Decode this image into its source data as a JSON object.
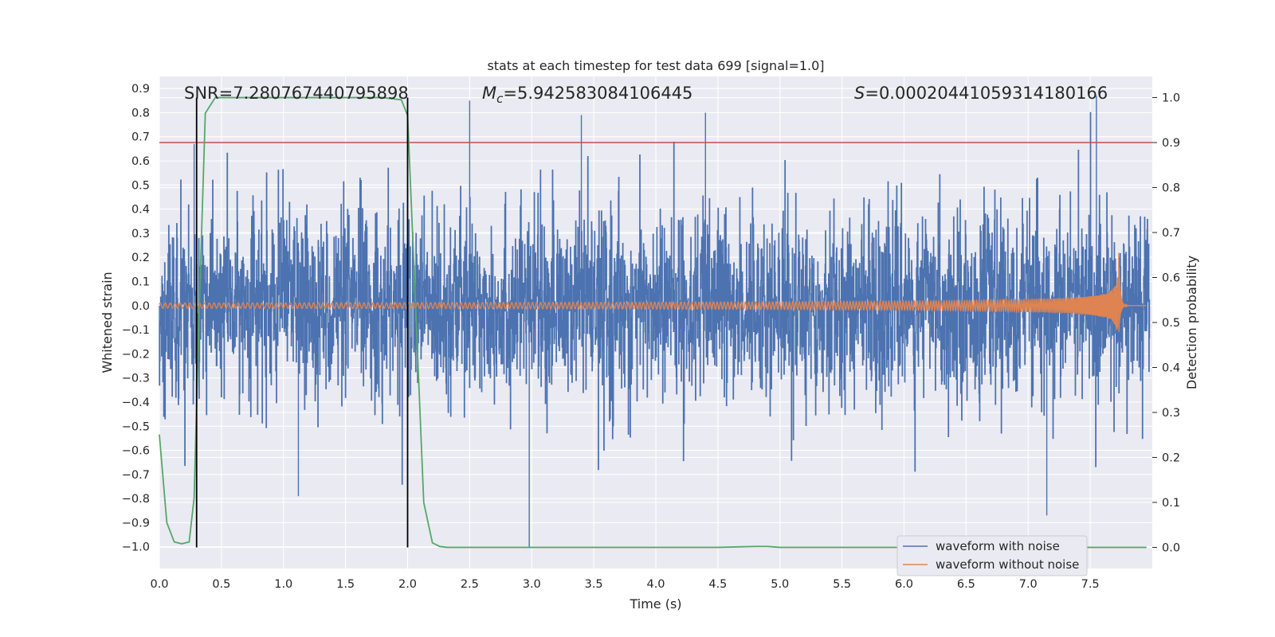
{
  "chart_data": {
    "type": "line",
    "title": "stats at each timestep for test data 699 [signal=1.0]",
    "xlabel": "Time (s)",
    "ylabel": "Whitened strain",
    "y2label": "Detection probability",
    "xlim": [
      0.0,
      8.0
    ],
    "ylim": [
      -1.09,
      0.95
    ],
    "y2lim": [
      -0.047,
      1.047
    ],
    "x_ticks": [
      0.0,
      0.5,
      1.0,
      1.5,
      2.0,
      2.5,
      3.0,
      3.5,
      4.0,
      4.5,
      5.0,
      5.5,
      6.0,
      6.5,
      7.0,
      7.5
    ],
    "x_tick_labels": [
      "0.0",
      "0.5",
      "1.0",
      "1.5",
      "2.0",
      "2.5",
      "3.0",
      "3.5",
      "4.0",
      "4.5",
      "5.0",
      "5.5",
      "6.0",
      "6.5",
      "7.0",
      "7.5"
    ],
    "y_ticks": [
      0.9,
      0.8,
      0.7,
      0.6,
      0.5,
      0.4,
      0.3,
      0.2,
      0.1,
      0.0,
      -0.1,
      -0.2,
      -0.3,
      -0.4,
      -0.5,
      -0.6,
      -0.7,
      -0.8,
      -0.9,
      -1.0
    ],
    "y_tick_labels": [
      "0.9",
      "0.8",
      "0.7",
      "0.6",
      "0.5",
      "0.4",
      "0.3",
      "0.2",
      "0.1",
      "0.0",
      "−0.1",
      "−0.2",
      "−0.3",
      "−0.4",
      "−0.5",
      "−0.6",
      "−0.7",
      "−0.8",
      "−0.9",
      "−1.0"
    ],
    "y2_ticks": [
      1.0,
      0.9,
      0.8,
      0.7,
      0.6,
      0.5,
      0.4,
      0.3,
      0.2,
      0.1,
      0.0
    ],
    "y2_tick_labels": [
      "1.0",
      "0.9",
      "0.8",
      "0.7",
      "0.6",
      "0.5",
      "0.4",
      "0.3",
      "0.2",
      "0.1",
      "0.0"
    ],
    "annotations": {
      "snr": "SNR=7.280767440795898",
      "mc_symbol": "M",
      "mc_subscript": "c",
      "mc_value": "=5.942583084106445",
      "s_symbol": "S",
      "s_value": "=0.00020441059314180166"
    },
    "threshold_probability": 0.9,
    "vertical_markers": [
      0.3,
      2.0
    ],
    "series": [
      {
        "name": "waveform with noise",
        "color": "#4c72b0",
        "description": "whitened strain with noise, amplitude mostly within ±0.6, spikes to 0.87 and −1.0",
        "typical_amplitude": 0.45,
        "peaks": [
          [
            0.28,
            0.67
          ],
          [
            2.5,
            0.85
          ],
          [
            3.4,
            0.79
          ],
          [
            4.4,
            0.8
          ],
          [
            7.55,
            0.87
          ],
          [
            2.98,
            -1.0
          ],
          [
            7.15,
            -0.87
          ],
          [
            1.12,
            -0.79
          ]
        ]
      },
      {
        "name": "waveform without noise",
        "color": "#dd8452",
        "description": "chirp signal, amplitude growing from 0.01 to 0.22 with merger near t=7.73 s",
        "merger_time": 7.73,
        "peak_amplitude": 0.22
      },
      {
        "name": "detection probability",
        "color": "#55a868",
        "axis": "right",
        "x": [
          0.0,
          0.06,
          0.12,
          0.18,
          0.24,
          0.28,
          0.32,
          0.37,
          0.45,
          1.8,
          1.95,
          2.0,
          2.07,
          2.13,
          2.2,
          2.26,
          2.32,
          2.4,
          3.0,
          4.5,
          4.8,
          4.9,
          5.0,
          6.0,
          7.0,
          7.95
        ],
        "values": [
          0.25,
          0.055,
          0.012,
          0.008,
          0.012,
          0.11,
          0.52,
          0.965,
          1.0,
          1.0,
          0.995,
          0.96,
          0.5,
          0.1,
          0.01,
          0.002,
          0.0,
          0.0,
          0.0,
          0.0,
          0.002,
          0.002,
          0.0,
          0.0,
          0.0,
          0.0
        ]
      }
    ],
    "legend": {
      "placement": "lower-right",
      "entries": [
        {
          "label": "waveform with noise",
          "color": "#4c72b0"
        },
        {
          "label": "waveform without noise",
          "color": "#dd8452"
        }
      ]
    },
    "colors": {
      "axes_background": "#eaeaf2",
      "grid": "#ffffff",
      "threshold": "#c44e52",
      "marker": "#000000"
    }
  }
}
